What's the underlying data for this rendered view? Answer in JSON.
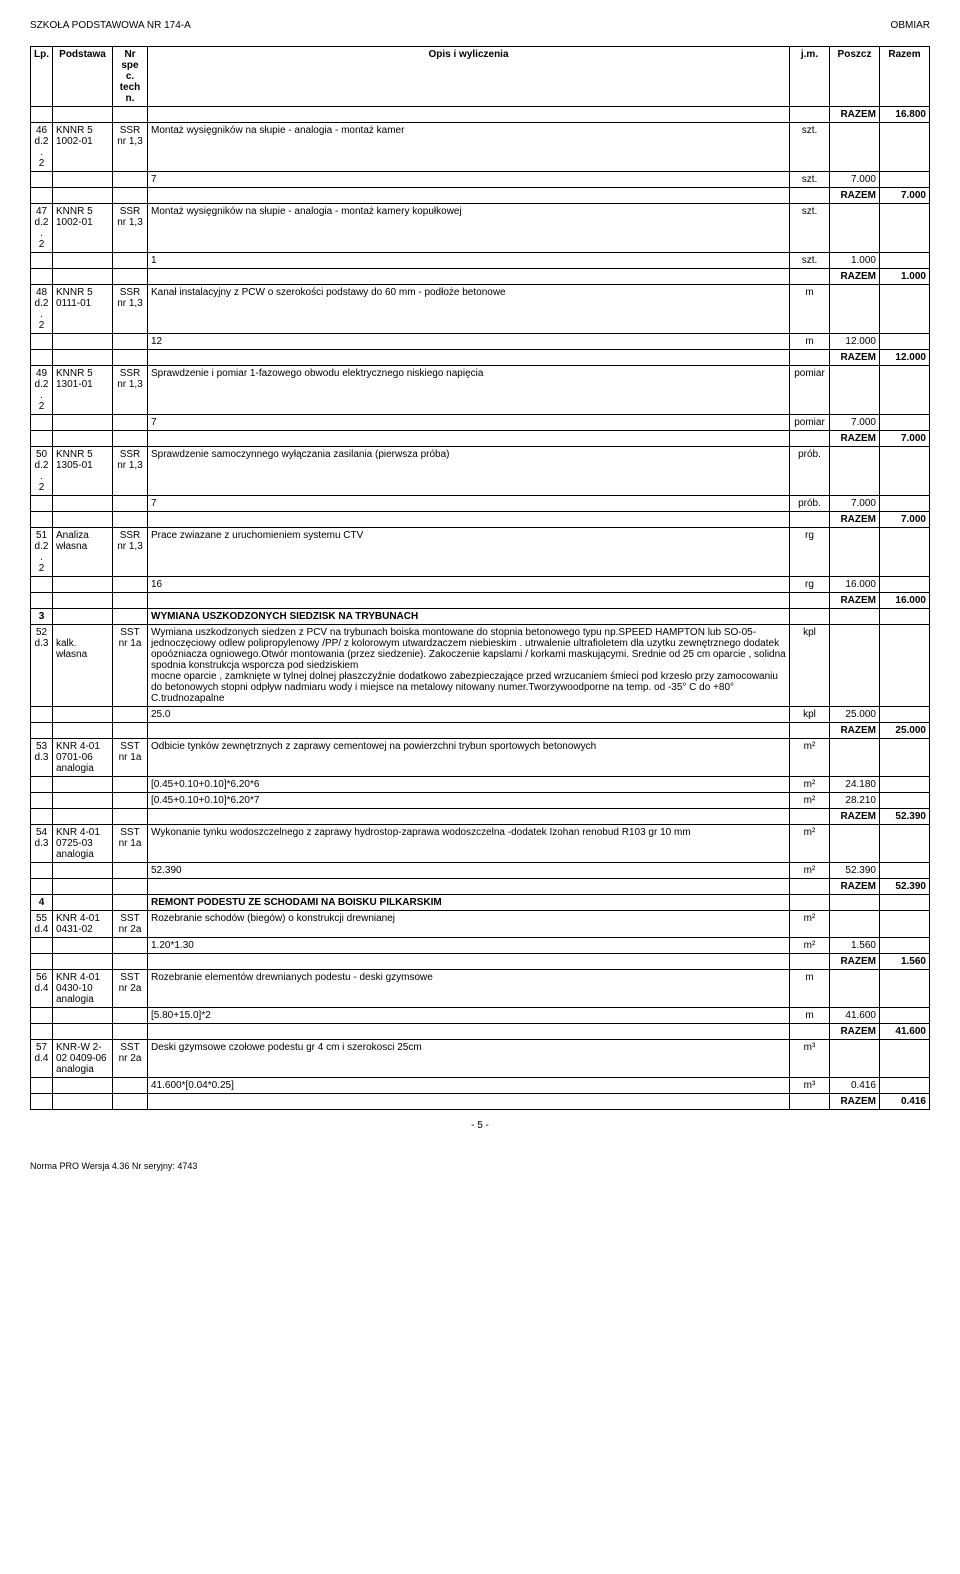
{
  "header": {
    "left": "SZKOŁA PODSTAWOWA NR 174-A",
    "right": "OBMIAR"
  },
  "table": {
    "columns": [
      "Lp.",
      "Podstawa",
      "Nr spe c. tech n.",
      "Opis i wyliczenia",
      "j.m.",
      "Poszcz",
      "Razem"
    ]
  },
  "rows": [
    {
      "type": "razem",
      "razem": "16.800"
    },
    {
      "type": "item",
      "lp": "46",
      "lp2": "d.2.",
      "lp3": "2",
      "podst": "KNNR 5",
      "podst2": "1002-01",
      "spec": "SSR",
      "spec2": "nr 1,3",
      "opis": "Montaż wysięgników na słupie - analogia - montaż kamer",
      "jm": "szt."
    },
    {
      "type": "calc",
      "opis": "7",
      "jm": "szt.",
      "poszcz": "7.000"
    },
    {
      "type": "razem",
      "razem": "7.000"
    },
    {
      "type": "item",
      "lp": "47",
      "lp2": "d.2.",
      "lp3": "2",
      "podst": "KNNR 5",
      "podst2": "1002-01",
      "spec": "SSR",
      "spec2": "nr 1,3",
      "opis": "Montaż wysięgników na słupie - analogia - montaż kamery kopułkowej",
      "jm": "szt."
    },
    {
      "type": "calc",
      "opis": "1",
      "jm": "szt.",
      "poszcz": "1.000"
    },
    {
      "type": "razem",
      "razem": "1.000"
    },
    {
      "type": "item",
      "lp": "48",
      "lp2": "d.2.",
      "lp3": "2",
      "podst": "KNNR 5",
      "podst2": "0111-01",
      "spec": "SSR",
      "spec2": "nr 1,3",
      "opis": "Kanał instalacyjny z PCW o szerokości podstawy do 60 mm - podłoże betonowe",
      "jm": "m"
    },
    {
      "type": "calc",
      "opis": "12",
      "jm": "m",
      "poszcz": "12.000"
    },
    {
      "type": "razem",
      "razem": "12.000"
    },
    {
      "type": "item",
      "lp": "49",
      "lp2": "d.2.",
      "lp3": "2",
      "podst": "KNNR 5",
      "podst2": "1301-01",
      "spec": "SSR",
      "spec2": "nr 1,3",
      "opis": "Sprawdzenie i pomiar 1-fazowego obwodu elektrycznego niskiego napięcia",
      "jm": "pomiar"
    },
    {
      "type": "calc",
      "opis": "7",
      "jm": "pomiar",
      "poszcz": "7.000"
    },
    {
      "type": "razem",
      "razem": "7.000"
    },
    {
      "type": "item",
      "lp": "50",
      "lp2": "d.2.",
      "lp3": "2",
      "podst": "KNNR 5",
      "podst2": "1305-01",
      "spec": "SSR",
      "spec2": "nr 1,3",
      "opis": "Sprawdzenie samoczynnego wyłączania zasilania (pierwsza próba)",
      "jm": "prób."
    },
    {
      "type": "calc",
      "opis": "7",
      "jm": "prób.",
      "poszcz": "7.000"
    },
    {
      "type": "razem",
      "razem": "7.000"
    },
    {
      "type": "item",
      "lp": "51",
      "lp2": "d.2.",
      "lp3": "2",
      "podst": "Analiza",
      "podst2": "własna",
      "spec": "SSR",
      "spec2": "nr 1,3",
      "opis": "Prace zwiazane z uruchomieniem systemu CTV",
      "jm": "rg"
    },
    {
      "type": "calc",
      "opis": "16",
      "jm": "rg",
      "poszcz": "16.000"
    },
    {
      "type": "razem",
      "razem": "16.000"
    },
    {
      "type": "section",
      "lp": "3",
      "opis": "WYMIANA USZKODZONYCH SIEDZISK NA TRYBUNACH"
    },
    {
      "type": "item",
      "lp": "52",
      "lp2": "d.3",
      "podst": "",
      "podst2": "kalk. własna",
      "spec": "SST",
      "spec2": "nr 1a",
      "opis": "Wymiana uszkodzonych siedzen z PCV na trybunach boiska montowane do stopnia betonowego typu np.SPEED HAMPTON lub SO-05-jednoczęciowy odlew polipropylenowy /PP/ z kolorowym utwardzaczem niebieskim . utrwalenie ultrafioletem dla uzytku zewnętrznego dodatek opoózniacza ogniowego.Otwór montowania (przez siedzenie). Zakoczenie kapslami / korkami maskującymi. Srednie od 25 cm oparcie , solidna spodnia konstrukcja wsporcza pod siedziskiem\n  mocne oparcie , zamknięte w tylnej dolnej płaszczyźnie dodatkowo zabezpieczające przed wrzucaniem śmieci pod krzesło przy zamocowaniu do betonowych stopni odpływ nadmiaru wody i miejsce na metalowy nitowany numer.Tworzywoodporne na temp. od -35° C do +80° C.trudnozapalne",
      "jm": "kpl"
    },
    {
      "type": "calc",
      "opis": "25.0",
      "jm": "kpl",
      "poszcz": "25.000"
    },
    {
      "type": "razem",
      "razem": "25.000"
    },
    {
      "type": "item",
      "lp": "53",
      "lp2": "d.3",
      "podst": "KNR 4-01",
      "podst2": "0701-06",
      "podst3": "analogia",
      "spec": "SST",
      "spec2": "nr 1a",
      "opis": "Odbicie tynków zewnętrznych z zaprawy cementowej na powierzchni trybun sportowych betonowych",
      "jm": "m2"
    },
    {
      "type": "calc",
      "opis": "[0.45+0.10+0.10]*6.20*6",
      "jm": "m2",
      "poszcz": "24.180"
    },
    {
      "type": "calc",
      "opis": "[0.45+0.10+0.10]*6.20*7",
      "jm": "m2",
      "poszcz": "28.210"
    },
    {
      "type": "razem",
      "razem": "52.390"
    },
    {
      "type": "item",
      "lp": "54",
      "lp2": "d.3",
      "podst": "KNR 4-01",
      "podst2": "0725-03",
      "podst3": "analogia",
      "spec": "SST",
      "spec2": "nr 1a",
      "opis": "Wykonanie tynku wodoszczelnego z zaprawy hydrostop-zaprawa wodoszczelna -dodatek Izohan renobud R103 gr 10 mm",
      "jm": "m2"
    },
    {
      "type": "calc",
      "opis": "52.390",
      "jm": "m2",
      "poszcz": "52.390"
    },
    {
      "type": "razem",
      "razem": "52.390"
    },
    {
      "type": "section",
      "lp": "4",
      "opis": "REMONT PODESTU ZE SCHODAMI NA BOISKU PILKARSKIM"
    },
    {
      "type": "item",
      "lp": "55",
      "lp2": "d.4",
      "podst": "KNR 4-01",
      "podst2": "0431-02",
      "spec": "SST",
      "spec2": "nr 2a",
      "opis": "Rozebranie schodów (biegów) o konstrukcji drewnianej",
      "jm": "m2"
    },
    {
      "type": "calc",
      "opis": "1.20*1.30",
      "jm": "m2",
      "poszcz": "1.560"
    },
    {
      "type": "razem",
      "razem": "1.560"
    },
    {
      "type": "item",
      "lp": "56",
      "lp2": "d.4",
      "podst": "KNR 4-01",
      "podst2": "0430-10",
      "podst3": "analogia",
      "spec": "SST",
      "spec2": "nr 2a",
      "opis": "Rozebranie elementów drewnianych podestu - deski gzymsowe",
      "jm": "m"
    },
    {
      "type": "calc",
      "opis": "[5.80+15.0]*2",
      "jm": "m",
      "poszcz": "41.600"
    },
    {
      "type": "razem",
      "razem": "41.600"
    },
    {
      "type": "item",
      "lp": "57",
      "lp2": "d.4",
      "podst": "KNR-W 2-",
      "podst2": "02 0409-06",
      "podst3": "analogia",
      "spec": "SST",
      "spec2": "nr 2a",
      "opis": "Deski gzymsowe czołowe podestu gr 4 cm i szerokosci 25cm",
      "jm": "m3"
    },
    {
      "type": "calc",
      "opis": "41.600*[0.04*0.25]",
      "jm": "m3",
      "poszcz": "0.416"
    },
    {
      "type": "razem",
      "razem": "0.416"
    }
  ],
  "razem_label": "RAZEM",
  "page_num": "- 5 -",
  "footer": "Norma PRO Wersja 4.36 Nr seryjny: 4743"
}
